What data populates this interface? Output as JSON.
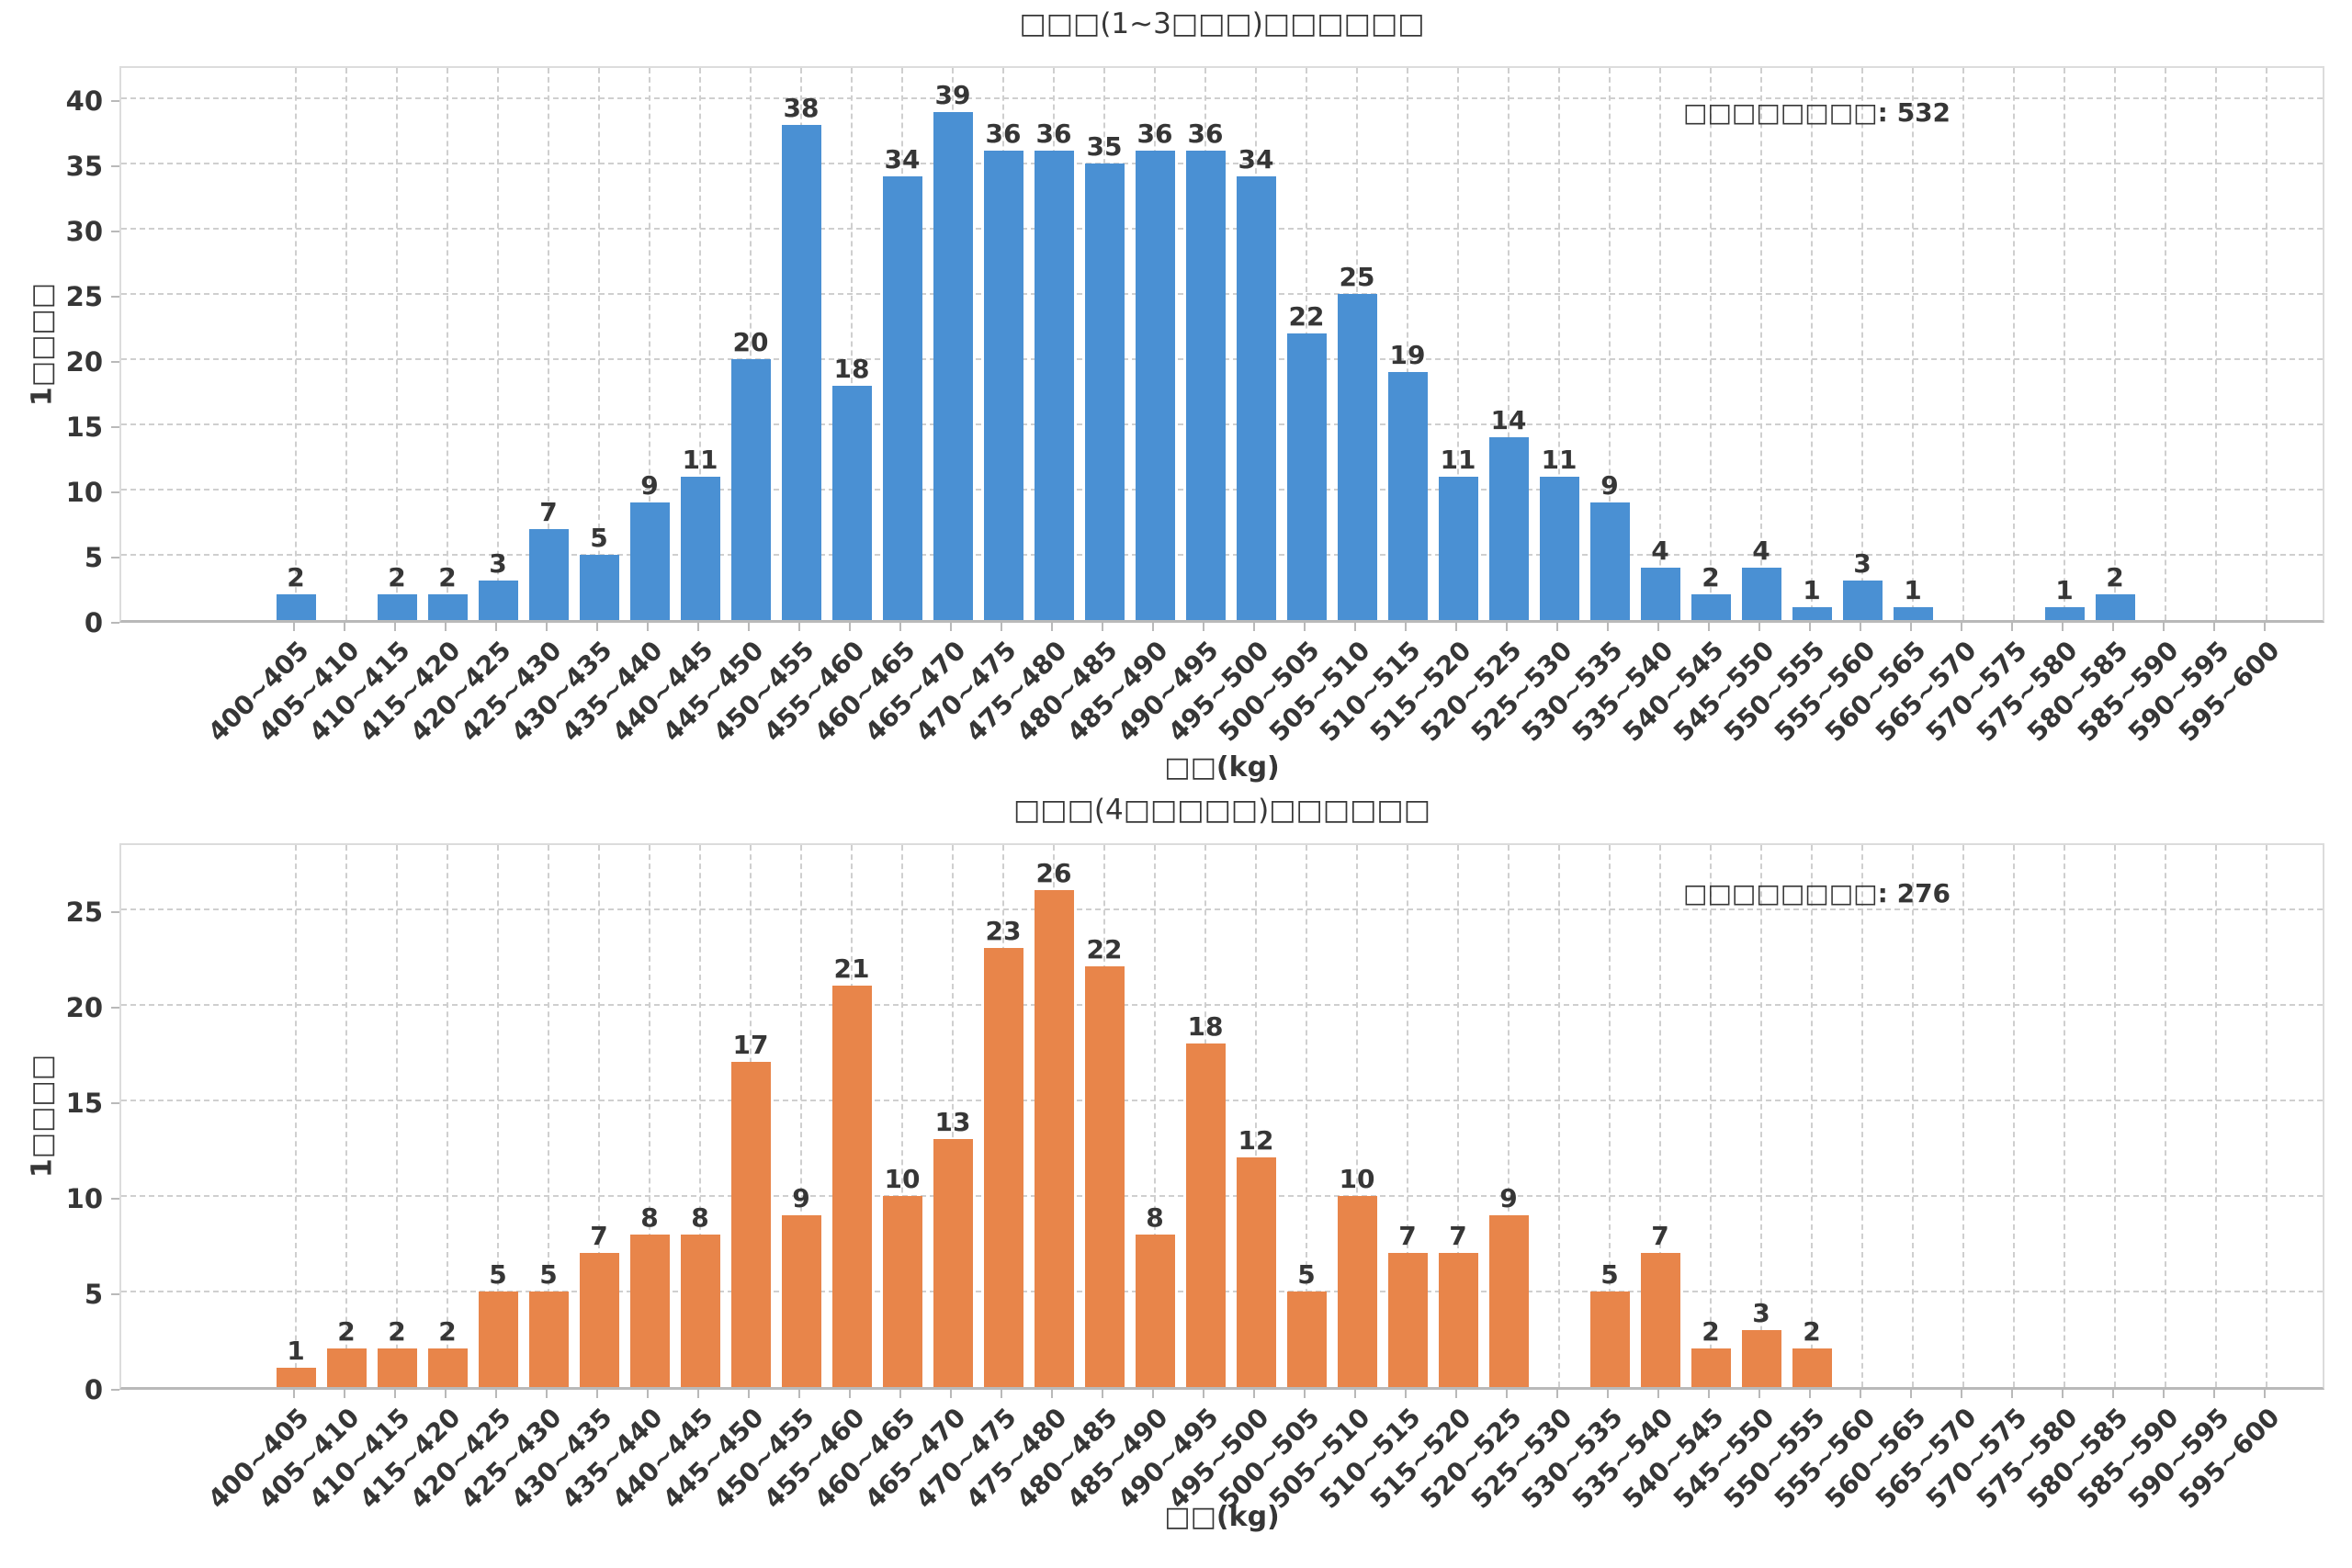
{
  "figure": {
    "background": "#ffffff",
    "text_color": "#363636",
    "grid_color": "#cfcfcf"
  },
  "chart_data": [
    {
      "type": "bar",
      "title": "□□□(1~3□□□)□□□□□□",
      "xlabel": "□□(kg)",
      "ylabel": "1□□□□",
      "annotation": "□□□□□□□□: 532",
      "bar_color": "#4a90d3",
      "grid": "dashed",
      "legend_position": "none",
      "categories": [
        "400~405",
        "405~410",
        "410~415",
        "415~420",
        "420~425",
        "425~430",
        "430~435",
        "435~440",
        "440~445",
        "445~450",
        "450~455",
        "455~460",
        "460~465",
        "465~470",
        "470~475",
        "475~480",
        "480~485",
        "485~490",
        "490~495",
        "495~500",
        "500~505",
        "505~510",
        "510~515",
        "515~520",
        "520~525",
        "525~530",
        "530~535",
        "535~540",
        "540~545",
        "545~550",
        "550~555",
        "555~560",
        "560~565",
        "565~570",
        "570~575",
        "575~580",
        "580~585",
        "585~590",
        "590~595",
        "595~600"
      ],
      "values": [
        2,
        0,
        2,
        2,
        3,
        7,
        5,
        9,
        11,
        20,
        38,
        18,
        34,
        39,
        36,
        36,
        35,
        36,
        36,
        34,
        22,
        25,
        19,
        11,
        14,
        11,
        9,
        4,
        2,
        4,
        1,
        3,
        1,
        0,
        0,
        1,
        2,
        0,
        0,
        0
      ],
      "yticks": [
        0,
        5,
        10,
        15,
        20,
        25,
        30,
        35,
        40
      ],
      "ylim": [
        0,
        42.7
      ]
    },
    {
      "type": "bar",
      "title": "□□□(4□□□□□)□□□□□□",
      "xlabel": "□□(kg)",
      "ylabel": "1□□□□",
      "annotation": "□□□□□□□□: 276",
      "bar_color": "#e8854a",
      "grid": "dashed",
      "legend_position": "none",
      "categories": [
        "400~405",
        "405~410",
        "410~415",
        "415~420",
        "420~425",
        "425~430",
        "430~435",
        "435~440",
        "440~445",
        "445~450",
        "450~455",
        "455~460",
        "460~465",
        "465~470",
        "470~475",
        "475~480",
        "480~485",
        "485~490",
        "490~495",
        "495~500",
        "500~505",
        "505~510",
        "510~515",
        "515~520",
        "520~525",
        "525~530",
        "530~535",
        "535~540",
        "540~545",
        "545~550",
        "550~555",
        "555~560",
        "560~565",
        "565~570",
        "570~575",
        "575~580",
        "580~585",
        "585~590",
        "590~595",
        "595~600"
      ],
      "values": [
        1,
        2,
        2,
        2,
        5,
        5,
        7,
        8,
        8,
        17,
        9,
        21,
        10,
        13,
        23,
        26,
        22,
        8,
        18,
        12,
        5,
        10,
        7,
        7,
        9,
        0,
        5,
        7,
        2,
        3,
        2,
        0,
        0,
        0,
        0,
        0,
        0,
        0,
        0,
        0
      ],
      "yticks": [
        0,
        5,
        10,
        15,
        20,
        25
      ],
      "ylim": [
        0,
        28.6
      ]
    }
  ]
}
